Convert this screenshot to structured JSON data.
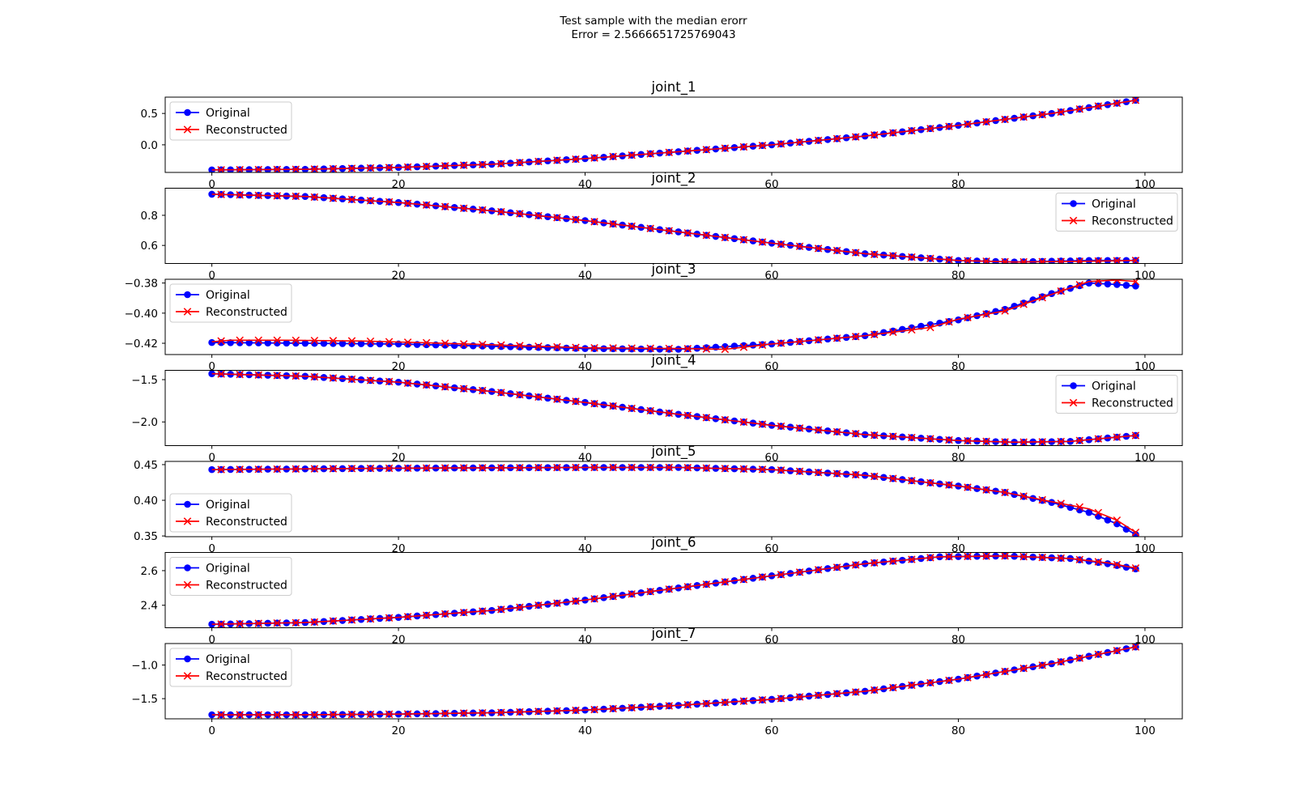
{
  "figure": {
    "title_line1": "Test sample with the median erorr",
    "title_line2": "Error = 2.5666651725769043"
  },
  "colors": {
    "original": "#0000ff",
    "reconstructed": "#ff0000"
  },
  "chart_data": [
    {
      "type": "line",
      "title": "joint_1",
      "legend": "upper-left",
      "xlim": [
        -5,
        104
      ],
      "ylim": [
        -0.44,
        0.76
      ],
      "xticks": [
        0,
        20,
        40,
        60,
        80,
        100
      ],
      "xtick_labels": [
        "0",
        "20",
        "40",
        "60",
        "80",
        "100"
      ],
      "yticks": [
        0.5,
        0.0
      ],
      "ytick_labels": [
        "0.5",
        "0.0"
      ],
      "series": [
        {
          "name": "Original",
          "marker": "circle",
          "x_start": 0,
          "x_end": 99,
          "keypoints": [
            [
              0,
              -0.4
            ],
            [
              10,
              -0.39
            ],
            [
              20,
              -0.36
            ],
            [
              30,
              -0.31
            ],
            [
              40,
              -0.22
            ],
            [
              50,
              -0.11
            ],
            [
              60,
              0.0
            ],
            [
              70,
              0.14
            ],
            [
              80,
              0.31
            ],
            [
              90,
              0.5
            ],
            [
              99,
              0.71
            ]
          ]
        },
        {
          "name": "Reconstructed",
          "marker": "x",
          "x_start": 0,
          "x_end": 99,
          "keypoints": [
            [
              0,
              -0.4
            ],
            [
              10,
              -0.39
            ],
            [
              20,
              -0.36
            ],
            [
              30,
              -0.31
            ],
            [
              40,
              -0.22
            ],
            [
              50,
              -0.11
            ],
            [
              60,
              0.0
            ],
            [
              70,
              0.14
            ],
            [
              80,
              0.31
            ],
            [
              90,
              0.5
            ],
            [
              99,
              0.71
            ]
          ]
        }
      ]
    },
    {
      "type": "line",
      "title": "joint_2",
      "legend": "upper-right",
      "xlim": [
        -5,
        104
      ],
      "ylim": [
        0.48,
        0.98
      ],
      "xticks": [
        0,
        20,
        40,
        60,
        80,
        100
      ],
      "xtick_labels": [
        "0",
        "20",
        "40",
        "60",
        "80",
        "100"
      ],
      "yticks": [
        0.8,
        0.6
      ],
      "ytick_labels": [
        "0.8",
        "0.6"
      ],
      "series": [
        {
          "name": "Original",
          "marker": "circle",
          "x_start": 0,
          "x_end": 99,
          "keypoints": [
            [
              0,
              0.94
            ],
            [
              10,
              0.925
            ],
            [
              20,
              0.885
            ],
            [
              30,
              0.83
            ],
            [
              40,
              0.765
            ],
            [
              50,
              0.69
            ],
            [
              60,
              0.615
            ],
            [
              70,
              0.545
            ],
            [
              80,
              0.5
            ],
            [
              86,
              0.49
            ],
            [
              94,
              0.5
            ],
            [
              99,
              0.5
            ]
          ]
        },
        {
          "name": "Reconstructed",
          "marker": "x",
          "x_start": 0,
          "x_end": 99,
          "keypoints": [
            [
              0,
              0.94
            ],
            [
              10,
              0.925
            ],
            [
              20,
              0.885
            ],
            [
              30,
              0.83
            ],
            [
              40,
              0.765
            ],
            [
              50,
              0.69
            ],
            [
              60,
              0.615
            ],
            [
              70,
              0.545
            ],
            [
              80,
              0.5
            ],
            [
              86,
              0.49
            ],
            [
              94,
              0.495
            ],
            [
              99,
              0.5
            ]
          ]
        }
      ]
    },
    {
      "type": "line",
      "title": "joint_3",
      "legend": "upper-left",
      "xlim": [
        -5,
        104
      ],
      "ylim": [
        -0.4275,
        -0.3775
      ],
      "xticks": [
        0,
        20,
        40,
        60,
        80,
        100
      ],
      "xtick_labels": [
        "0",
        "20",
        "40",
        "60",
        "80",
        "100"
      ],
      "yticks": [
        -0.38,
        -0.4,
        -0.42
      ],
      "ytick_labels": [
        "−0.38",
        "−0.40",
        "−0.42"
      ],
      "series": [
        {
          "name": "Original",
          "marker": "circle",
          "x_start": 0,
          "x_end": 99,
          "keypoints": [
            [
              0,
              -0.4195
            ],
            [
              20,
              -0.4205
            ],
            [
              40,
              -0.4235
            ],
            [
              50,
              -0.424
            ],
            [
              60,
              -0.4205
            ],
            [
              70,
              -0.415
            ],
            [
              80,
              -0.4045
            ],
            [
              85,
              -0.3975
            ],
            [
              90,
              -0.387
            ],
            [
              94,
              -0.38
            ],
            [
              97,
              -0.381
            ],
            [
              99,
              -0.382
            ]
          ]
        },
        {
          "name": "Reconstructed",
          "marker": "x",
          "x_start": 0,
          "x_end": 99,
          "keypoints": [
            [
              0,
              -0.419
            ],
            [
              2,
              -0.418
            ],
            [
              8,
              -0.418
            ],
            [
              16,
              -0.4185
            ],
            [
              22,
              -0.4195
            ],
            [
              30,
              -0.421
            ],
            [
              40,
              -0.423
            ],
            [
              50,
              -0.4235
            ],
            [
              55,
              -0.424
            ],
            [
              60,
              -0.4205
            ],
            [
              70,
              -0.415
            ],
            [
              77,
              -0.4095
            ],
            [
              80,
              -0.404
            ],
            [
              85,
              -0.3985
            ],
            [
              90,
              -0.3875
            ],
            [
              94,
              -0.379
            ],
            [
              97,
              -0.378
            ],
            [
              99,
              -0.379
            ]
          ]
        }
      ]
    },
    {
      "type": "line",
      "title": "joint_4",
      "legend": "upper-right",
      "xlim": [
        -5,
        104
      ],
      "ylim": [
        -2.28,
        -1.39
      ],
      "xticks": [
        0,
        20,
        40,
        60,
        80,
        100
      ],
      "xtick_labels": [
        "0",
        "20",
        "40",
        "60",
        "80",
        "100"
      ],
      "yticks": [
        -1.5,
        -2.0
      ],
      "ytick_labels": [
        "−1.5",
        "−2.0"
      ],
      "series": [
        {
          "name": "Original",
          "marker": "circle",
          "x_start": 0,
          "x_end": 99,
          "keypoints": [
            [
              0,
              -1.43
            ],
            [
              10,
              -1.46
            ],
            [
              20,
              -1.53
            ],
            [
              30,
              -1.64
            ],
            [
              40,
              -1.77
            ],
            [
              50,
              -1.91
            ],
            [
              60,
              -2.04
            ],
            [
              70,
              -2.15
            ],
            [
              80,
              -2.22
            ],
            [
              86,
              -2.24
            ],
            [
              92,
              -2.23
            ],
            [
              99,
              -2.16
            ]
          ]
        },
        {
          "name": "Reconstructed",
          "marker": "x",
          "x_start": 0,
          "x_end": 99,
          "keypoints": [
            [
              0,
              -1.43
            ],
            [
              10,
              -1.46
            ],
            [
              20,
              -1.53
            ],
            [
              30,
              -1.64
            ],
            [
              40,
              -1.77
            ],
            [
              50,
              -1.91
            ],
            [
              60,
              -2.04
            ],
            [
              70,
              -2.15
            ],
            [
              80,
              -2.22
            ],
            [
              86,
              -2.24
            ],
            [
              92,
              -2.23
            ],
            [
              99,
              -2.16
            ]
          ]
        }
      ]
    },
    {
      "type": "line",
      "title": "joint_5",
      "legend": "lower-left",
      "xlim": [
        -5,
        104
      ],
      "ylim": [
        0.349,
        0.4545
      ],
      "xticks": [
        0,
        20,
        40,
        60,
        80,
        100
      ],
      "xtick_labels": [
        "0",
        "20",
        "40",
        "60",
        "80",
        "100"
      ],
      "yticks": [
        0.45,
        0.4,
        0.35
      ],
      "ytick_labels": [
        "0.45",
        "0.40",
        "0.35"
      ],
      "series": [
        {
          "name": "Original",
          "marker": "circle",
          "x_start": 0,
          "x_end": 99,
          "keypoints": [
            [
              0,
              0.443
            ],
            [
              20,
              0.445
            ],
            [
              40,
              0.446
            ],
            [
              50,
              0.446
            ],
            [
              60,
              0.443
            ],
            [
              70,
              0.435
            ],
            [
              80,
              0.42
            ],
            [
              85,
              0.411
            ],
            [
              90,
              0.397
            ],
            [
              94,
              0.383
            ],
            [
              97,
              0.367
            ],
            [
              99,
              0.352
            ]
          ]
        },
        {
          "name": "Reconstructed",
          "marker": "x",
          "x_start": 0,
          "x_end": 99,
          "keypoints": [
            [
              0,
              0.443
            ],
            [
              20,
              0.445
            ],
            [
              40,
              0.446
            ],
            [
              50,
              0.446
            ],
            [
              60,
              0.443
            ],
            [
              70,
              0.435
            ],
            [
              80,
              0.42
            ],
            [
              85,
              0.411
            ],
            [
              90,
              0.398
            ],
            [
              94,
              0.388
            ],
            [
              97,
              0.372
            ],
            [
              99,
              0.355
            ]
          ]
        }
      ]
    },
    {
      "type": "line",
      "title": "joint_6",
      "legend": "upper-left",
      "xlim": [
        -5,
        104
      ],
      "ylim": [
        2.27,
        2.705
      ],
      "xticks": [
        0,
        20,
        40,
        60,
        80,
        100
      ],
      "xtick_labels": [
        "0",
        "20",
        "40",
        "60",
        "80",
        "100"
      ],
      "yticks": [
        2.6,
        2.4
      ],
      "ytick_labels": [
        "2.6",
        "2.4"
      ],
      "series": [
        {
          "name": "Original",
          "marker": "circle",
          "x_start": 0,
          "x_end": 99,
          "keypoints": [
            [
              0,
              2.29
            ],
            [
              10,
              2.3
            ],
            [
              20,
              2.33
            ],
            [
              30,
              2.37
            ],
            [
              40,
              2.43
            ],
            [
              50,
              2.5
            ],
            [
              60,
              2.57
            ],
            [
              70,
              2.64
            ],
            [
              78,
              2.68
            ],
            [
              85,
              2.685
            ],
            [
              92,
              2.67
            ],
            [
              96,
              2.64
            ],
            [
              99,
              2.61
            ]
          ]
        },
        {
          "name": "Reconstructed",
          "marker": "x",
          "x_start": 0,
          "x_end": 99,
          "keypoints": [
            [
              0,
              2.29
            ],
            [
              10,
              2.3
            ],
            [
              20,
              2.33
            ],
            [
              30,
              2.37
            ],
            [
              40,
              2.43
            ],
            [
              50,
              2.5
            ],
            [
              60,
              2.57
            ],
            [
              70,
              2.64
            ],
            [
              78,
              2.68
            ],
            [
              85,
              2.685
            ],
            [
              92,
              2.67
            ],
            [
              96,
              2.645
            ],
            [
              99,
              2.615
            ]
          ]
        }
      ]
    },
    {
      "type": "line",
      "title": "joint_7",
      "legend": "upper-left",
      "xlim": [
        -5,
        104
      ],
      "ylim": [
        -1.8,
        -0.68
      ],
      "xticks": [
        0,
        20,
        40,
        60,
        80,
        100
      ],
      "xtick_labels": [
        "0",
        "20",
        "40",
        "60",
        "80",
        "100"
      ],
      "yticks": [
        -1.0,
        -1.5
      ],
      "ytick_labels": [
        "−1.0",
        "−1.5"
      ],
      "series": [
        {
          "name": "Original",
          "marker": "circle",
          "x_start": 0,
          "x_end": 99,
          "keypoints": [
            [
              0,
              -1.74
            ],
            [
              10,
              -1.74
            ],
            [
              20,
              -1.73
            ],
            [
              30,
              -1.71
            ],
            [
              40,
              -1.67
            ],
            [
              50,
              -1.6
            ],
            [
              60,
              -1.51
            ],
            [
              70,
              -1.39
            ],
            [
              80,
              -1.21
            ],
            [
              90,
              -0.98
            ],
            [
              99,
              -0.73
            ]
          ]
        },
        {
          "name": "Reconstructed",
          "marker": "x",
          "x_start": 0,
          "x_end": 99,
          "keypoints": [
            [
              0,
              -1.74
            ],
            [
              10,
              -1.74
            ],
            [
              20,
              -1.73
            ],
            [
              30,
              -1.71
            ],
            [
              40,
              -1.67
            ],
            [
              50,
              -1.6
            ],
            [
              60,
              -1.51
            ],
            [
              70,
              -1.39
            ],
            [
              80,
              -1.21
            ],
            [
              90,
              -0.98
            ],
            [
              99,
              -0.73
            ]
          ]
        }
      ]
    }
  ]
}
